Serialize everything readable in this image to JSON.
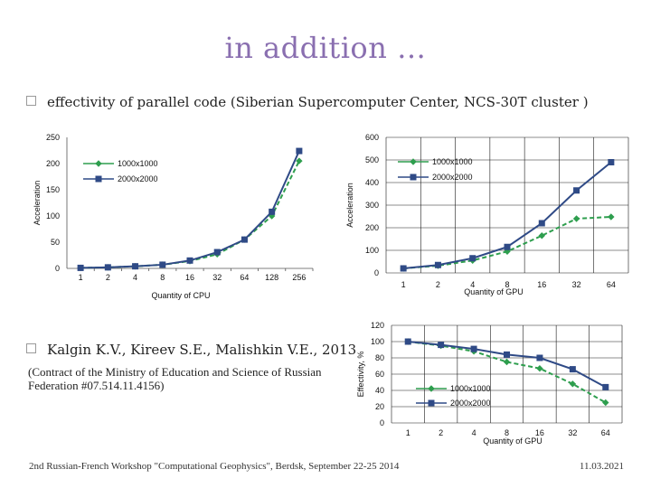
{
  "slide": {
    "title": "in addition …",
    "bullet1": "effectivity of parallel code (Siberian Supercomputer Center, NCS-30T cluster )",
    "bullet2": "Kalgin K.V., Kireev S.E., Malishkin V.E., 2013",
    "contract": "(Contract of the Ministry of Education and Science of Russian Federation #07.514.11.4156)",
    "footer_left": "2nd Russian-French Workshop \"Computational Geophysics\", Berdsk, September 22-25 2014",
    "footer_right": "11.03.2021"
  },
  "colors": {
    "series_1000": "#2e9e4e",
    "series_2000": "#2f4a86",
    "grid": "#1a1a1a"
  },
  "chart_data": [
    {
      "id": "cpu",
      "type": "line",
      "title": "",
      "xlabel": "Quantity of CPU",
      "ylabel": "Acceleration",
      "categories": [
        "1",
        "2",
        "4",
        "8",
        "16",
        "32",
        "64",
        "128",
        "256"
      ],
      "ylim": [
        0,
        250
      ],
      "yticks": [
        0,
        50,
        100,
        150,
        200,
        250
      ],
      "grid": false,
      "legend": "top-left",
      "series": [
        {
          "name": "1000x1000",
          "marker": "diamond",
          "values": [
            1,
            2,
            4,
            7,
            14,
            27,
            55,
            100,
            205
          ]
        },
        {
          "name": "2000x2000",
          "marker": "square",
          "values": [
            1,
            2,
            4,
            7,
            15,
            31,
            55,
            108,
            224
          ]
        }
      ]
    },
    {
      "id": "gpu",
      "type": "line",
      "title": "",
      "xlabel": "Quantity of GPU",
      "ylabel": "Acceleration",
      "categories": [
        "1",
        "2",
        "4",
        "8",
        "16",
        "32",
        "64"
      ],
      "ylim": [
        0,
        600
      ],
      "yticks": [
        0,
        100,
        200,
        300,
        400,
        500,
        600
      ],
      "grid": true,
      "legend": "top-right",
      "series": [
        {
          "name": "1000x1000",
          "marker": "diamond",
          "values": [
            20,
            32,
            55,
            95,
            165,
            240,
            248
          ]
        },
        {
          "name": "2000x2000",
          "marker": "square",
          "values": [
            20,
            35,
            65,
            115,
            220,
            365,
            490
          ]
        }
      ]
    },
    {
      "id": "efficiency",
      "type": "line",
      "title": "",
      "xlabel": "Quantity of GPU",
      "ylabel": "Effectivity, %",
      "categories": [
        "1",
        "2",
        "4",
        "8",
        "16",
        "32",
        "64"
      ],
      "ylim": [
        0,
        120
      ],
      "yticks": [
        0,
        20,
        40,
        60,
        80,
        100,
        120
      ],
      "grid": true,
      "legend": "bottom-center",
      "series": [
        {
          "name": "1000x1000",
          "marker": "diamond",
          "values": [
            100,
            95,
            88,
            75,
            67,
            48,
            25
          ]
        },
        {
          "name": "2000x2000",
          "marker": "square",
          "values": [
            100,
            96,
            91,
            84,
            80,
            66,
            44
          ]
        }
      ]
    }
  ]
}
